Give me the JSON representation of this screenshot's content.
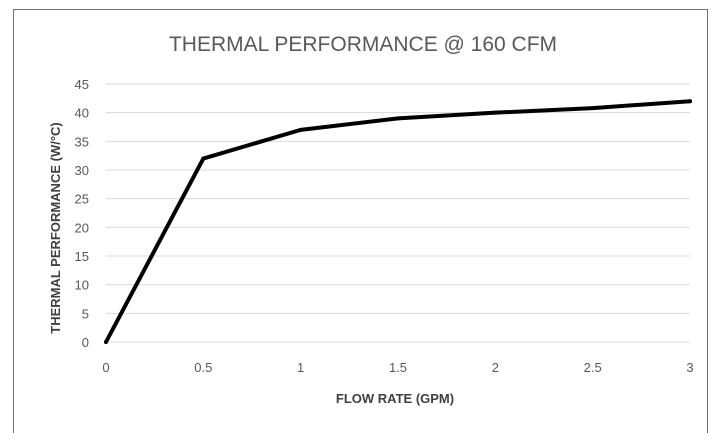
{
  "chart_data": {
    "type": "line",
    "title": "THERMAL PERFORMANCE @ 160 CFM",
    "xlabel": "FLOW RATE (GPM)",
    "ylabel": "THERMAL PERFORMANCE (W/°C)",
    "x_ticks": [
      "0",
      "0.5",
      "1",
      "1.5",
      "2",
      "2.5",
      "3"
    ],
    "y_ticks": [
      "0",
      "5",
      "10",
      "15",
      "20",
      "25",
      "30",
      "35",
      "40",
      "45"
    ],
    "xlim": [
      0,
      3
    ],
    "ylim": [
      0,
      45
    ],
    "grid": "horizontal",
    "series": [
      {
        "x": [
          0,
          0.5,
          1,
          1.5,
          2,
          2.5,
          3
        ],
        "y": [
          0,
          32,
          37,
          39,
          40,
          40.8,
          42
        ],
        "color": "#000000"
      }
    ]
  }
}
